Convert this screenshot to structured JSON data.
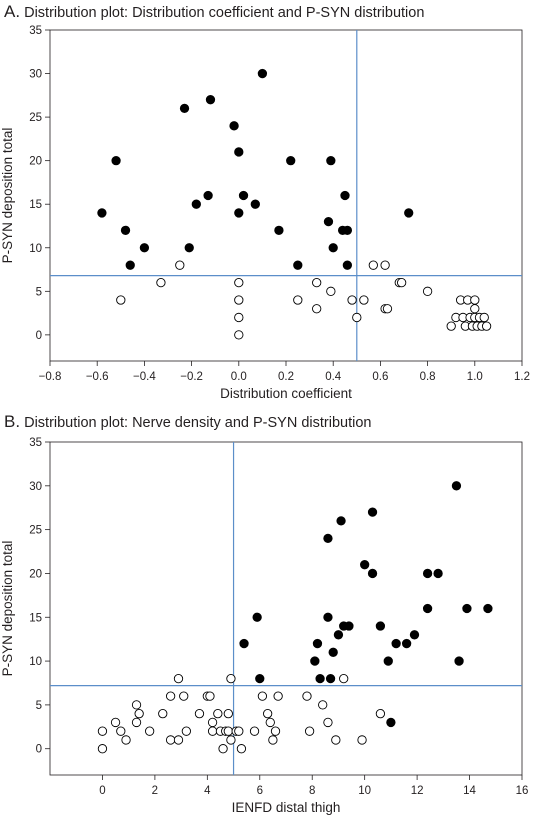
{
  "chart_data": [
    {
      "type": "scatter",
      "panel_letter": "A.",
      "title": "Distribution plot: Distribution coefficient and P-SYN distribution",
      "xlabel": "Distribution coefficient",
      "ylabel": "P-SYN deposition total",
      "xlim": [
        -0.8,
        1.2
      ],
      "ylim": [
        -3,
        35
      ],
      "xticks": [
        -0.8,
        -0.6,
        -0.4,
        -0.2,
        0,
        0.2,
        0.4,
        0.6,
        0.8,
        1,
        1.2
      ],
      "xtick_labels": [
        "−0.8",
        "−0.6",
        "−0.4",
        "−0.2",
        "0.0",
        "0.2",
        "0.4",
        "0.6",
        "0.8",
        "1.0",
        "1.2"
      ],
      "yticks": [
        0,
        5,
        10,
        15,
        20,
        25,
        30,
        35
      ],
      "ytick_labels": [
        "0",
        "5",
        "10",
        "15",
        "20",
        "25",
        "30",
        "35"
      ],
      "threshold_x": 0.5,
      "threshold_y": 6.8,
      "threshold_color": "#5b8ec9",
      "grid": false,
      "series": [
        {
          "marker": "filled",
          "points": [
            [
              -0.58,
              14
            ],
            [
              -0.52,
              20
            ],
            [
              -0.48,
              12
            ],
            [
              -0.46,
              8
            ],
            [
              -0.4,
              10
            ],
            [
              -0.23,
              26
            ],
            [
              -0.21,
              10
            ],
            [
              -0.18,
              15
            ],
            [
              -0.12,
              27
            ],
            [
              -0.13,
              16
            ],
            [
              -0.02,
              24
            ],
            [
              0.0,
              21
            ],
            [
              0.0,
              14
            ],
            [
              0.02,
              16
            ],
            [
              0.07,
              15
            ],
            [
              0.1,
              30
            ],
            [
              0.17,
              12
            ],
            [
              0.22,
              20
            ],
            [
              0.25,
              8
            ],
            [
              0.38,
              13
            ],
            [
              0.39,
              20
            ],
            [
              0.4,
              10
            ],
            [
              0.44,
              12
            ],
            [
              0.45,
              16
            ],
            [
              0.46,
              12
            ],
            [
              0.46,
              8
            ],
            [
              0.72,
              14
            ]
          ]
        },
        {
          "marker": "open",
          "points": [
            [
              -0.5,
              4
            ],
            [
              -0.33,
              6
            ],
            [
              -0.25,
              8
            ],
            [
              0.0,
              6
            ],
            [
              0.0,
              4
            ],
            [
              0.0,
              2
            ],
            [
              0.0,
              0
            ],
            [
              0.25,
              4
            ],
            [
              0.33,
              6
            ],
            [
              0.33,
              3
            ],
            [
              0.39,
              5
            ],
            [
              0.48,
              4
            ],
            [
              0.5,
              2
            ],
            [
              0.53,
              4
            ],
            [
              0.57,
              8
            ],
            [
              0.62,
              8
            ],
            [
              0.62,
              3
            ],
            [
              0.63,
              3
            ],
            [
              0.68,
              6
            ],
            [
              0.69,
              6
            ],
            [
              0.8,
              5
            ],
            [
              0.9,
              1
            ],
            [
              0.92,
              2
            ],
            [
              0.94,
              4
            ],
            [
              0.95,
              2
            ],
            [
              0.96,
              1
            ],
            [
              0.97,
              4
            ],
            [
              0.98,
              2
            ],
            [
              0.99,
              1
            ],
            [
              1.0,
              3
            ],
            [
              1.0,
              2
            ],
            [
              1.0,
              4
            ],
            [
              1.01,
              1
            ],
            [
              1.02,
              2
            ],
            [
              1.03,
              1
            ],
            [
              1.04,
              2
            ],
            [
              1.05,
              1
            ]
          ]
        }
      ]
    },
    {
      "type": "scatter",
      "panel_letter": "B.",
      "title": "Distribution plot: Nerve density and P-SYN distribution",
      "xlabel": "IENFD distal thigh",
      "ylabel": "P-SYN deposition total",
      "xlim": [
        -2,
        16
      ],
      "ylim": [
        -3,
        35
      ],
      "xticks": [
        0,
        2,
        4,
        6,
        8,
        10,
        12,
        14,
        16
      ],
      "xtick_labels": [
        "0",
        "2",
        "4",
        "6",
        "8",
        "10",
        "12",
        "14",
        "16"
      ],
      "yticks": [
        0,
        5,
        10,
        15,
        20,
        25,
        30,
        35
      ],
      "ytick_labels": [
        "0",
        "5",
        "10",
        "15",
        "20",
        "25",
        "30",
        "35"
      ],
      "threshold_x": 5.0,
      "threshold_y": 7.2,
      "threshold_color": "#5b8ec9",
      "grid": false,
      "series": [
        {
          "marker": "filled",
          "points": [
            [
              5.4,
              12
            ],
            [
              5.9,
              15
            ],
            [
              6.0,
              8
            ],
            [
              8.1,
              10
            ],
            [
              8.2,
              12
            ],
            [
              8.3,
              8
            ],
            [
              8.6,
              24
            ],
            [
              8.6,
              15
            ],
            [
              8.7,
              8
            ],
            [
              8.8,
              11
            ],
            [
              9.0,
              13
            ],
            [
              9.1,
              26
            ],
            [
              9.2,
              14
            ],
            [
              9.4,
              14
            ],
            [
              10.0,
              21
            ],
            [
              10.3,
              27
            ],
            [
              10.3,
              20
            ],
            [
              10.6,
              14
            ],
            [
              10.9,
              10
            ],
            [
              11.0,
              3
            ],
            [
              11.2,
              12
            ],
            [
              11.6,
              12
            ],
            [
              11.9,
              13
            ],
            [
              12.4,
              16
            ],
            [
              12.4,
              20
            ],
            [
              12.8,
              20
            ],
            [
              13.5,
              30
            ],
            [
              13.6,
              10
            ],
            [
              13.9,
              16
            ],
            [
              14.7,
              16
            ]
          ]
        },
        {
          "marker": "open",
          "points": [
            [
              0.0,
              0
            ],
            [
              0.0,
              2
            ],
            [
              0.5,
              3
            ],
            [
              0.7,
              2
            ],
            [
              0.9,
              1
            ],
            [
              1.3,
              3
            ],
            [
              1.3,
              5
            ],
            [
              1.4,
              4
            ],
            [
              1.8,
              2
            ],
            [
              2.3,
              4
            ],
            [
              2.6,
              6
            ],
            [
              2.6,
              1
            ],
            [
              2.9,
              8
            ],
            [
              2.9,
              1
            ],
            [
              3.1,
              6
            ],
            [
              3.2,
              2
            ],
            [
              3.7,
              4
            ],
            [
              4.0,
              6
            ],
            [
              4.1,
              6
            ],
            [
              4.2,
              3
            ],
            [
              4.2,
              2
            ],
            [
              4.4,
              4
            ],
            [
              4.5,
              2
            ],
            [
              4.6,
              0
            ],
            [
              4.7,
              2
            ],
            [
              4.8,
              4
            ],
            [
              4.8,
              2
            ],
            [
              4.9,
              1
            ],
            [
              4.9,
              8
            ],
            [
              5.1,
              2
            ],
            [
              5.2,
              2
            ],
            [
              5.3,
              0
            ],
            [
              5.8,
              2
            ],
            [
              6.1,
              6
            ],
            [
              6.3,
              4
            ],
            [
              6.4,
              3
            ],
            [
              6.5,
              1
            ],
            [
              6.6,
              2
            ],
            [
              6.7,
              6
            ],
            [
              7.8,
              6
            ],
            [
              7.9,
              2
            ],
            [
              8.4,
              5
            ],
            [
              8.6,
              3
            ],
            [
              8.9,
              1
            ],
            [
              9.2,
              8
            ],
            [
              9.9,
              1
            ],
            [
              10.6,
              4
            ]
          ]
        }
      ]
    }
  ]
}
